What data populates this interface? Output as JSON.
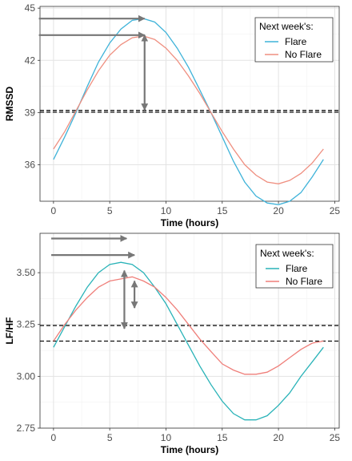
{
  "chart_data": [
    {
      "type": "line",
      "title": "",
      "xlabel": "Time (hours)",
      "ylabel": "RMSSD",
      "xlim": [
        -1.2,
        25.4
      ],
      "ylim": [
        33.9,
        45.1
      ],
      "xticks": [
        0,
        5,
        10,
        15,
        20,
        25
      ],
      "yticks": [
        36,
        39,
        42,
        45
      ],
      "grid": true,
      "legend": {
        "title": "Next week's:",
        "placement": "top-right"
      },
      "series": [
        {
          "name": "Flare",
          "color": "#3fb3d9",
          "x": [
            0,
            1,
            2,
            3,
            4,
            5,
            6,
            7,
            8,
            9,
            10,
            11,
            12,
            13,
            14,
            15,
            16,
            17,
            18,
            19,
            20,
            21,
            22,
            23,
            24
          ],
          "y": [
            36.3,
            37.6,
            39.0,
            40.5,
            41.9,
            43.0,
            43.8,
            44.3,
            44.4,
            44.2,
            43.6,
            42.7,
            41.6,
            40.3,
            39.0,
            37.6,
            36.2,
            35.0,
            34.2,
            33.8,
            33.7,
            33.9,
            34.4,
            35.3,
            36.3
          ]
        },
        {
          "name": "No Flare",
          "color": "#ef8f80",
          "x": [
            0,
            1,
            2,
            3,
            4,
            5,
            6,
            7,
            8,
            9,
            10,
            11,
            12,
            13,
            14,
            15,
            16,
            17,
            18,
            19,
            20,
            21,
            22,
            23,
            24
          ],
          "y": [
            36.9,
            37.9,
            39.1,
            40.3,
            41.4,
            42.3,
            42.9,
            43.3,
            43.4,
            43.2,
            42.7,
            42.0,
            41.1,
            40.1,
            39.0,
            37.9,
            36.9,
            36.0,
            35.4,
            35.0,
            34.9,
            35.1,
            35.5,
            36.1,
            36.9
          ]
        }
      ],
      "annotations": {
        "hlines": [
          39.12,
          39.02
        ],
        "arrows": [
          {
            "x0": -1.3,
            "x1": 8.1,
            "y0": 44.4,
            "y1": 44.4
          },
          {
            "x0": -1.3,
            "x1": 8.1,
            "y0": 43.45,
            "y1": 43.45
          },
          {
            "x0": 8.1,
            "x1": 8.1,
            "y0": 39.15,
            "y1": 43.45
          }
        ]
      }
    },
    {
      "type": "line",
      "title": "",
      "xlabel": "Time (hours)",
      "ylabel": "LF/HF",
      "xlim": [
        -1.2,
        25.4
      ],
      "ylim": [
        2.75,
        3.69
      ],
      "xticks": [
        0,
        5,
        10,
        15,
        20,
        25
      ],
      "yticks": [
        2.75,
        3.0,
        3.25,
        3.5
      ],
      "ytick_labels": [
        "2.75",
        "3.00",
        "3.25",
        "3.50"
      ],
      "grid": true,
      "legend": {
        "title": "Next week's:",
        "placement": "top-right"
      },
      "series": [
        {
          "name": "Flare",
          "color": "#2ab3b8",
          "x": [
            0,
            1,
            2,
            3,
            4,
            5,
            6,
            7,
            8,
            9,
            10,
            11,
            12,
            13,
            14,
            15,
            16,
            17,
            18,
            19,
            20,
            21,
            22,
            23,
            24
          ],
          "y": [
            3.14,
            3.24,
            3.34,
            3.43,
            3.5,
            3.54,
            3.55,
            3.54,
            3.5,
            3.43,
            3.35,
            3.25,
            3.15,
            3.05,
            2.96,
            2.88,
            2.82,
            2.79,
            2.79,
            2.81,
            2.86,
            2.92,
            3.0,
            3.07,
            3.14
          ]
        },
        {
          "name": "No Flare",
          "color": "#ef7f7a",
          "x": [
            0,
            1,
            2,
            3,
            4,
            5,
            6,
            7,
            8,
            9,
            10,
            11,
            12,
            13,
            14,
            15,
            16,
            17,
            18,
            19,
            20,
            21,
            22,
            23,
            24
          ],
          "y": [
            3.17,
            3.25,
            3.32,
            3.38,
            3.43,
            3.46,
            3.47,
            3.48,
            3.46,
            3.43,
            3.38,
            3.32,
            3.25,
            3.18,
            3.12,
            3.06,
            3.03,
            3.01,
            3.01,
            3.02,
            3.05,
            3.09,
            3.13,
            3.16,
            3.17
          ]
        }
      ],
      "annotations": {
        "hlines": [
          3.245,
          3.17
        ],
        "arrows": [
          {
            "x0": -0.2,
            "x1": 6.5,
            "y0": 3.665,
            "y1": 3.665
          },
          {
            "x0": -0.2,
            "x1": 7.2,
            "y0": 3.585,
            "y1": 3.585
          },
          {
            "x0": 6.3,
            "x1": 6.3,
            "y0": 3.23,
            "y1": 3.51
          },
          {
            "x0": 7.2,
            "x1": 7.2,
            "y0": 3.33,
            "y1": 3.46
          }
        ]
      }
    }
  ]
}
